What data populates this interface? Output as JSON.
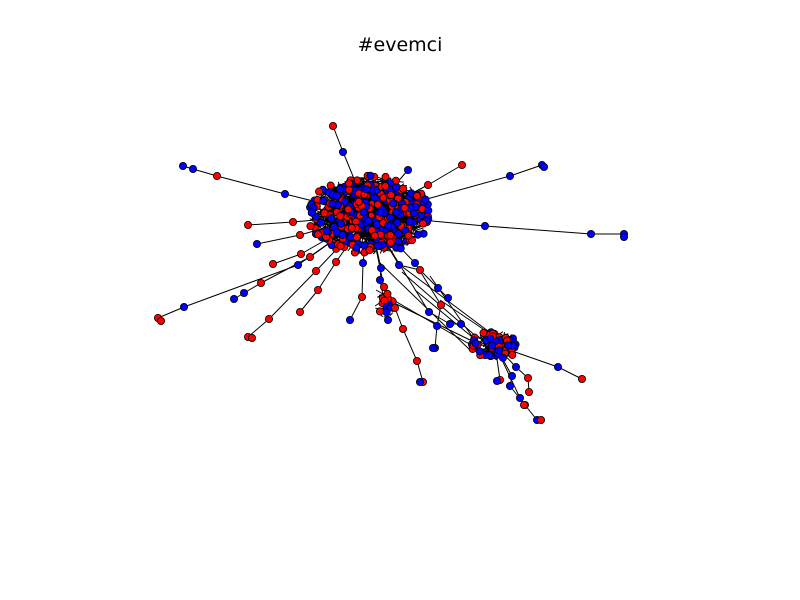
{
  "title": "#evemci",
  "colors": {
    "node_red": "#ff0000",
    "node_blue": "#0000ff",
    "edge": "#000000",
    "background": "#ffffff"
  }
}
